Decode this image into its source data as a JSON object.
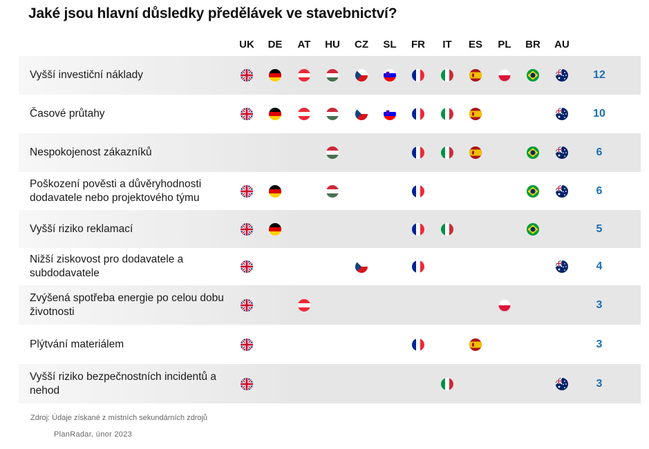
{
  "title": "Jaké jsou hlavní důsledky předělávek ve stavebnictví?",
  "chart_data": {
    "type": "table",
    "columns": [
      "UK",
      "DE",
      "AT",
      "HU",
      "CZ",
      "SL",
      "FR",
      "IT",
      "ES",
      "PL",
      "BR",
      "AU"
    ],
    "rows": [
      {
        "label": "Vyšší investiční náklady",
        "countries": [
          "UK",
          "DE",
          "AT",
          "HU",
          "CZ",
          "SL",
          "FR",
          "IT",
          "ES",
          "PL",
          "BR",
          "AU"
        ],
        "count": 12
      },
      {
        "label": "Časové průtahy",
        "countries": [
          "UK",
          "DE",
          "AT",
          "HU",
          "CZ",
          "SL",
          "FR",
          "IT",
          "ES",
          "AU"
        ],
        "count": 10
      },
      {
        "label": "Nespokojenost zákazníků",
        "countries": [
          "HU",
          "FR",
          "IT",
          "ES",
          "BR",
          "AU"
        ],
        "count": 6
      },
      {
        "label": "Poškození pověsti a důvěryhodnosti dodavatele nebo projektového týmu",
        "countries": [
          "UK",
          "DE",
          "HU",
          "FR",
          "BR",
          "AU"
        ],
        "count": 6
      },
      {
        "label": "Vyšší riziko reklamací",
        "countries": [
          "UK",
          "DE",
          "FR",
          "IT",
          "BR"
        ],
        "count": 5
      },
      {
        "label": "Nižší ziskovost pro dodavatele a subdodavatele",
        "countries": [
          "UK",
          "CZ",
          "FR",
          "AU"
        ],
        "count": 4
      },
      {
        "label": "Zvýšená spotřeba energie po celou dobu životnosti",
        "countries": [
          "UK",
          "AT",
          "PL"
        ],
        "count": 3
      },
      {
        "label": "Plýtvání materiálem",
        "countries": [
          "UK",
          "FR",
          "ES"
        ],
        "count": 3
      },
      {
        "label": "Vyšší riziko bezpečnostních incidentů a nehod",
        "countries": [
          "UK",
          "IT",
          "AU"
        ],
        "count": 3
      }
    ],
    "count_color": "#1b6fb5"
  },
  "footer": {
    "source": "Zdroj: Údaje získané z místních sekundárních zdrojů",
    "credit": "PlanRadar, únor 2023"
  }
}
